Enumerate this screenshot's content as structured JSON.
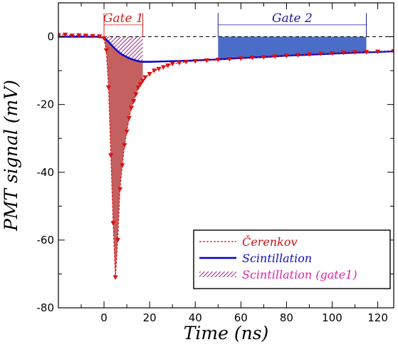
{
  "chart_data": {
    "type": "line",
    "xlabel": "Time (ns)",
    "ylabel": "PMT signal (mV)",
    "xlim": [
      -20,
      127
    ],
    "ylim": [
      -80,
      10
    ],
    "x_ticks": [
      0,
      20,
      40,
      60,
      80,
      100,
      120
    ],
    "y_ticks": [
      0,
      -20,
      -40,
      -60,
      -80
    ],
    "grid": false,
    "legend_position": "bottom-right",
    "zero_line": true,
    "gates": [
      {
        "label": "Gate 1",
        "x_start": 0,
        "x_end": 17,
        "color": "#d42020"
      },
      {
        "label": "Gate 2",
        "x_start": 50,
        "x_end": 115,
        "color": "#1a1a9e"
      }
    ],
    "series": [
      {
        "name": "Čerenkov",
        "style": "dashed-with-triangle-markers",
        "color": "#dd1111",
        "fill_color": "#c46060",
        "x": [
          -20,
          -17,
          -14,
          -11,
          -8,
          -5,
          -2,
          0,
          1,
          2,
          3,
          4,
          5,
          6,
          7,
          8,
          9,
          10,
          11,
          12,
          13,
          14,
          15,
          16,
          17,
          18,
          20,
          22,
          24,
          26,
          28,
          30,
          33,
          36,
          40,
          45,
          50,
          55,
          60,
          65,
          70,
          75,
          80,
          85,
          90,
          95,
          100,
          105,
          110,
          115,
          120,
          127
        ],
        "y": [
          0.5,
          0.6,
          0.3,
          0.4,
          0.3,
          0.2,
          0.1,
          -0.5,
          -4,
          -15,
          -35,
          -55,
          -71,
          -60,
          -45,
          -38,
          -32,
          -28,
          -24,
          -21,
          -19,
          -17,
          -15,
          -14,
          -13,
          -12,
          -11,
          -10,
          -9.5,
          -9,
          -8.5,
          -8,
          -7.7,
          -7.4,
          -7.2,
          -7.0,
          -6.8,
          -6.6,
          -6.4,
          -6.2,
          -6.0,
          -5.8,
          -5.6,
          -5.4,
          -5.2,
          -5.0,
          -4.9,
          -4.7,
          -4.6,
          -4.5,
          -4.4,
          -4.3
        ]
      },
      {
        "name": "Scintillation",
        "style": "solid",
        "color": "#0000cc",
        "fill_color": "#4a6ec8",
        "x": [
          -20,
          -10,
          -3,
          0,
          2,
          4,
          6,
          8,
          10,
          12,
          15,
          17,
          20,
          25,
          30,
          40,
          50,
          60,
          70,
          80,
          90,
          100,
          110,
          115,
          120,
          127
        ],
        "y": [
          0,
          0,
          0,
          -0.3,
          -1.5,
          -3.0,
          -4.3,
          -5.3,
          -6.0,
          -6.6,
          -7.2,
          -7.4,
          -7.4,
          -7.3,
          -7.2,
          -7.0,
          -6.7,
          -6.3,
          -6.0,
          -5.6,
          -5.3,
          -5.0,
          -4.7,
          -4.6,
          -4.5,
          -4.3
        ]
      },
      {
        "name": "Scintillation (gate1)",
        "style": "hatched-area",
        "color": "#cc22aa",
        "x_start": 0,
        "x_end": 17
      }
    ]
  }
}
